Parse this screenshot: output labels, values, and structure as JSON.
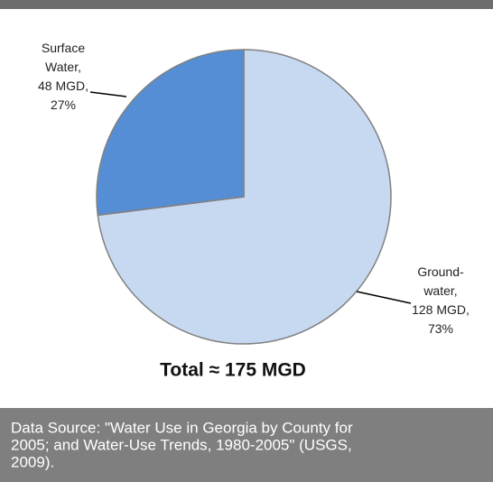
{
  "chart_data": {
    "type": "pie",
    "values": [
      27,
      73
    ],
    "value_labels": [
      "Surface Water, 48 MGD, 27%",
      "Ground-water, 128 MGD, 73%"
    ],
    "colors": [
      "#558ed5",
      "#c6d9f1"
    ],
    "total_label": "Total ≈ 175 MGD",
    "source_lines": [
      "Data Source: \"Water Use in Georgia by County for",
      "2005; and Water-Use Trends, 1980-2005\" (USGS,",
      "2009)."
    ]
  }
}
